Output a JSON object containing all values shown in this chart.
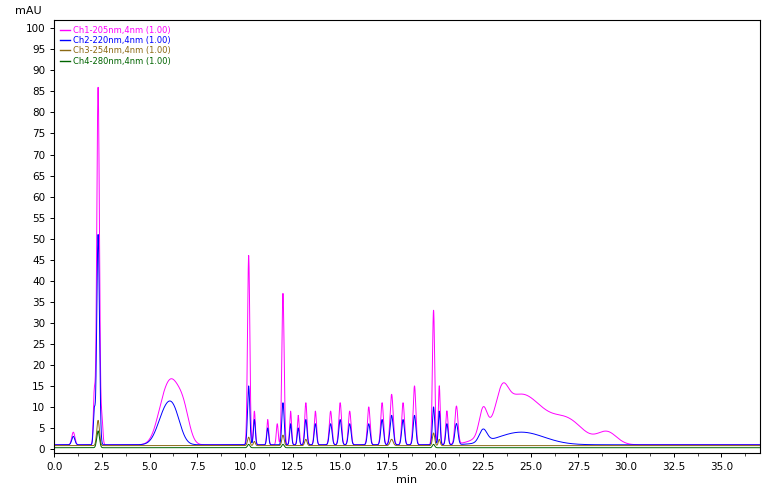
{
  "ylabel": "mAU",
  "xlabel": "min",
  "xlim": [
    0,
    37
  ],
  "ylim": [
    -1,
    102
  ],
  "ytick_vals": [
    0,
    5,
    10,
    15,
    20,
    25,
    30,
    35,
    40,
    45,
    50,
    55,
    60,
    65,
    70,
    75,
    80,
    85,
    90,
    95,
    100
  ],
  "ytick_labels": [
    "0",
    "5",
    "10",
    "15",
    "20",
    "25",
    "30",
    "35",
    "40",
    "45",
    "50",
    "55",
    "60",
    "65",
    "70",
    "75",
    "80",
    "85",
    "90",
    "95",
    "100"
  ],
  "xtick_vals": [
    0.0,
    2.5,
    5.0,
    7.5,
    10.0,
    12.5,
    15.0,
    17.5,
    20.0,
    22.5,
    25.0,
    27.5,
    30.0,
    32.5,
    35.0
  ],
  "xtick_labels": [
    "0.0",
    "2.5",
    "5.0",
    "7.5",
    "10.0",
    "12.5",
    "15.0",
    "17.5",
    "20.0",
    "22.5",
    "25.0",
    "27.5",
    "30.0",
    "32.5",
    "35.0"
  ],
  "channels": [
    {
      "label": "Ch1-205nm,4nm (1.00)",
      "color": "#FF00FF"
    },
    {
      "label": "Ch2-220nm,4nm (1.00)",
      "color": "#0000FF"
    },
    {
      "label": "Ch3-254nm,4nm (1.00)",
      "color": "#8B6914"
    },
    {
      "label": "Ch4-280nm,4nm (1.00)",
      "color": "#006400"
    }
  ],
  "bg_color": "#FFFFFF"
}
